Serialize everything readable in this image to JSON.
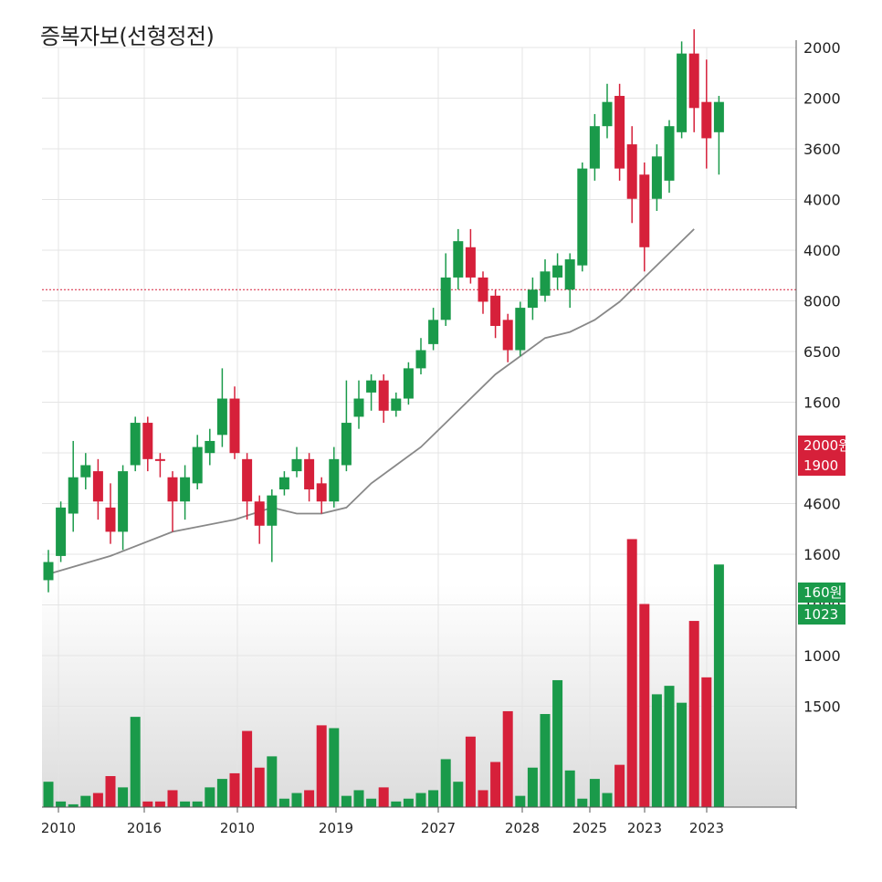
{
  "title": "증복자보(선형정전)",
  "chart_data": {
    "type": "candlestick",
    "title": "증복자보(선형정전)",
    "price_axis_labels": [
      "2000",
      "2000",
      "3600",
      "4000",
      "4000",
      "8000",
      "6500",
      "1600",
      "2000원",
      "4600",
      "1600"
    ],
    "volume_axis_labels": [
      "1000",
      "1000",
      "1500"
    ],
    "x_tick_labels": [
      "2010",
      "2016",
      "2010",
      "2019",
      "2027",
      "2028",
      "2025",
      "2023",
      "2023"
    ],
    "price_scale": {
      "min": 0,
      "max": 100,
      "unit": "relative"
    },
    "volume_scale": {
      "min": 0,
      "max": 100,
      "unit": "relative"
    },
    "colors": {
      "up": "#1a9a4a",
      "down": "#d6203a",
      "ma": "#888888",
      "grid": "#e4e4e4",
      "ref_line": "#d6203a"
    },
    "candles": [
      {
        "o": 12,
        "c": 15,
        "h": 17,
        "l": 10,
        "v": 9,
        "up": true
      },
      {
        "o": 16,
        "c": 24,
        "h": 25,
        "l": 15,
        "v": 2,
        "up": true
      },
      {
        "o": 23,
        "c": 29,
        "h": 35,
        "l": 20,
        "v": 1,
        "up": true
      },
      {
        "o": 29,
        "c": 31,
        "h": 33,
        "l": 27,
        "v": 4,
        "up": true
      },
      {
        "o": 30,
        "c": 25,
        "h": 32,
        "l": 22,
        "v": 5,
        "up": false
      },
      {
        "o": 24,
        "c": 20,
        "h": 28,
        "l": 18,
        "v": 11,
        "up": false
      },
      {
        "o": 20,
        "c": 30,
        "h": 31,
        "l": 17,
        "v": 7,
        "up": true
      },
      {
        "o": 31,
        "c": 38,
        "h": 39,
        "l": 30,
        "v": 32,
        "up": true
      },
      {
        "o": 38,
        "c": 32,
        "h": 39,
        "l": 30,
        "v": 2,
        "up": false
      },
      {
        "o": 32,
        "c": 32,
        "h": 33,
        "l": 29,
        "v": 2,
        "up": false
      },
      {
        "o": 29,
        "c": 25,
        "h": 30,
        "l": 20,
        "v": 6,
        "up": false
      },
      {
        "o": 25,
        "c": 29,
        "h": 31,
        "l": 22,
        "v": 2,
        "up": true
      },
      {
        "o": 28,
        "c": 34,
        "h": 36,
        "l": 27,
        "v": 2,
        "up": true
      },
      {
        "o": 33,
        "c": 35,
        "h": 37,
        "l": 31,
        "v": 7,
        "up": true
      },
      {
        "o": 36,
        "c": 42,
        "h": 47,
        "l": 34,
        "v": 10,
        "up": true
      },
      {
        "o": 42,
        "c": 33,
        "h": 44,
        "l": 32,
        "v": 12,
        "up": false
      },
      {
        "o": 32,
        "c": 25,
        "h": 33,
        "l": 22,
        "v": 27,
        "up": false
      },
      {
        "o": 25,
        "c": 21,
        "h": 26,
        "l": 18,
        "v": 14,
        "up": false
      },
      {
        "o": 21,
        "c": 26,
        "h": 27,
        "l": 15,
        "v": 18,
        "up": true
      },
      {
        "o": 27,
        "c": 29,
        "h": 30,
        "l": 26,
        "v": 3,
        "up": true
      },
      {
        "o": 30,
        "c": 32,
        "h": 34,
        "l": 29,
        "v": 5,
        "up": true
      },
      {
        "o": 32,
        "c": 27,
        "h": 33,
        "l": 25,
        "v": 6,
        "up": false
      },
      {
        "o": 28,
        "c": 25,
        "h": 29,
        "l": 23,
        "v": 29,
        "up": false
      },
      {
        "o": 25,
        "c": 32,
        "h": 34,
        "l": 24,
        "v": 28,
        "up": true
      },
      {
        "o": 31,
        "c": 38,
        "h": 45,
        "l": 30,
        "v": 4,
        "up": true
      },
      {
        "o": 39,
        "c": 42,
        "h": 45,
        "l": 37,
        "v": 6,
        "up": true
      },
      {
        "o": 43,
        "c": 45,
        "h": 46,
        "l": 40,
        "v": 3,
        "up": true
      },
      {
        "o": 45,
        "c": 40,
        "h": 46,
        "l": 38,
        "v": 7,
        "up": false
      },
      {
        "o": 40,
        "c": 42,
        "h": 43,
        "l": 39,
        "v": 2,
        "up": true
      },
      {
        "o": 42,
        "c": 47,
        "h": 48,
        "l": 41,
        "v": 3,
        "up": true
      },
      {
        "o": 47,
        "c": 50,
        "h": 52,
        "l": 46,
        "v": 5,
        "up": true
      },
      {
        "o": 51,
        "c": 55,
        "h": 57,
        "l": 50,
        "v": 6,
        "up": true
      },
      {
        "o": 55,
        "c": 62,
        "h": 66,
        "l": 54,
        "v": 17,
        "up": true
      },
      {
        "o": 62,
        "c": 68,
        "h": 70,
        "l": 60,
        "v": 9,
        "up": true
      },
      {
        "o": 67,
        "c": 62,
        "h": 70,
        "l": 61,
        "v": 25,
        "up": false
      },
      {
        "o": 62,
        "c": 58,
        "h": 63,
        "l": 56,
        "v": 6,
        "up": false
      },
      {
        "o": 59,
        "c": 54,
        "h": 60,
        "l": 52,
        "v": 16,
        "up": false
      },
      {
        "o": 55,
        "c": 50,
        "h": 56,
        "l": 48,
        "v": 34,
        "up": false
      },
      {
        "o": 50,
        "c": 57,
        "h": 58,
        "l": 49,
        "v": 4,
        "up": true
      },
      {
        "o": 57,
        "c": 60,
        "h": 62,
        "l": 55,
        "v": 14,
        "up": true
      },
      {
        "o": 59,
        "c": 63,
        "h": 65,
        "l": 58,
        "v": 33,
        "up": true
      },
      {
        "o": 62,
        "c": 64,
        "h": 66,
        "l": 60,
        "v": 45,
        "up": true
      },
      {
        "o": 60,
        "c": 65,
        "h": 66,
        "l": 57,
        "v": 13,
        "up": true
      },
      {
        "o": 64,
        "c": 80,
        "h": 81,
        "l": 63,
        "v": 3,
        "up": true
      },
      {
        "o": 80,
        "c": 87,
        "h": 89,
        "l": 78,
        "v": 10,
        "up": true
      },
      {
        "o": 87,
        "c": 91,
        "h": 94,
        "l": 85,
        "v": 5,
        "up": true
      },
      {
        "o": 92,
        "c": 80,
        "h": 94,
        "l": 78,
        "v": 15,
        "up": false
      },
      {
        "o": 84,
        "c": 75,
        "h": 87,
        "l": 71,
        "v": 95,
        "up": false
      },
      {
        "o": 79,
        "c": 67,
        "h": 81,
        "l": 63,
        "v": 72,
        "up": false
      },
      {
        "o": 75,
        "c": 82,
        "h": 84,
        "l": 73,
        "v": 40,
        "up": true
      },
      {
        "o": 78,
        "c": 87,
        "h": 88,
        "l": 76,
        "v": 43,
        "up": true
      },
      {
        "o": 86,
        "c": 99,
        "h": 101,
        "l": 85,
        "v": 37,
        "up": true
      },
      {
        "o": 99,
        "c": 90,
        "h": 103,
        "l": 86,
        "v": 66,
        "up": false
      },
      {
        "o": 91,
        "c": 85,
        "h": 98,
        "l": 80,
        "v": 46,
        "up": false
      },
      {
        "o": 86,
        "c": 91,
        "h": 92,
        "l": 79,
        "v": 86,
        "up": true
      }
    ],
    "moving_average": [
      {
        "i": 0,
        "v": 13
      },
      {
        "i": 5,
        "v": 16
      },
      {
        "i": 10,
        "v": 20
      },
      {
        "i": 15,
        "v": 22
      },
      {
        "i": 18,
        "v": 24
      },
      {
        "i": 20,
        "v": 23
      },
      {
        "i": 22,
        "v": 23
      },
      {
        "i": 24,
        "v": 24
      },
      {
        "i": 26,
        "v": 28
      },
      {
        "i": 28,
        "v": 31
      },
      {
        "i": 30,
        "v": 34
      },
      {
        "i": 32,
        "v": 38
      },
      {
        "i": 34,
        "v": 42
      },
      {
        "i": 36,
        "v": 46
      },
      {
        "i": 38,
        "v": 49
      },
      {
        "i": 40,
        "v": 52
      },
      {
        "i": 42,
        "v": 53
      },
      {
        "i": 44,
        "v": 55
      },
      {
        "i": 46,
        "v": 58
      },
      {
        "i": 48,
        "v": 62
      },
      {
        "i": 50,
        "v": 66
      },
      {
        "i": 52,
        "v": 70
      }
    ],
    "reference_line": {
      "value": 60,
      "label": "2000원"
    },
    "tags": [
      {
        "label": "2000원",
        "color": "#d6203a",
        "value": 60
      },
      {
        "label": "1900",
        "color": "#d6203a",
        "value": 55
      },
      {
        "label": "160원",
        "color": "#1a9a4a",
        "value": 10
      },
      {
        "label": "1023",
        "color": "#1a9a4a",
        "value": 4
      }
    ]
  }
}
